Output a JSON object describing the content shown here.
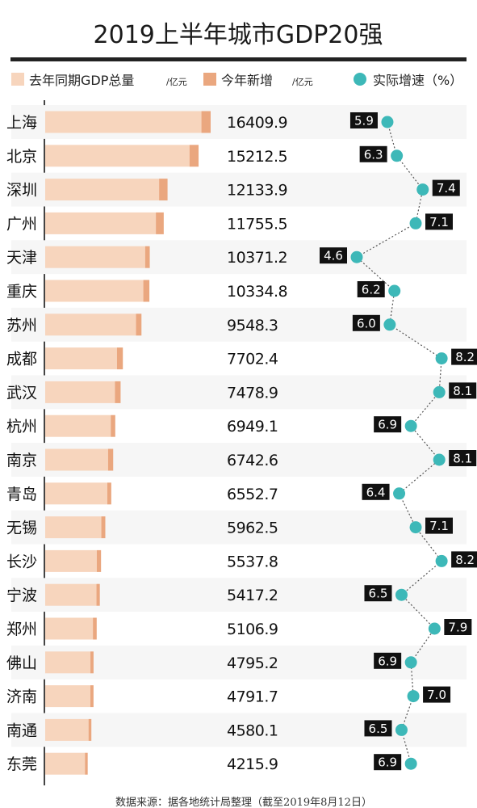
{
  "chart_data": {
    "type": "bar",
    "title": "2019上半年城市GDP20强",
    "legend": {
      "prev_label": "去年同期GDP总量",
      "prev_unit": "/亿元",
      "new_label": "今年新增",
      "new_unit": "/亿元",
      "rate_label": "实际增速（%）"
    },
    "colors": {
      "prev": "#f7d5bd",
      "new": "#eaa77f",
      "rate_dot": "#3db8b8",
      "rate_box": "#111111",
      "line": "#555555"
    },
    "categories": [
      "上海",
      "北京",
      "深圳",
      "广州",
      "天津",
      "重庆",
      "苏州",
      "成都",
      "武汉",
      "杭州",
      "南京",
      "青岛",
      "无锡",
      "长沙",
      "宁波",
      "郑州",
      "佛山",
      "济南",
      "南通",
      "东莞"
    ],
    "gdp_total": [
      16409.9,
      15212.5,
      12133.9,
      11755.5,
      10371.2,
      10334.8,
      9548.3,
      7702.4,
      7478.9,
      6949.1,
      6742.6,
      6552.7,
      5962.5,
      5537.8,
      5417.2,
      5106.9,
      4795.2,
      4791.7,
      4580.1,
      4215.9
    ],
    "gdp_total_labels": [
      "16409.9",
      "15212.5",
      "12133.9",
      "11755.5",
      "10371.2",
      "10334.8",
      "9548.3",
      "7702.4",
      "7478.9",
      "6949.1",
      "6742.6",
      "6552.7",
      "5962.5",
      "5537.8",
      "5417.2",
      "5106.9",
      "4795.2",
      "4791.7",
      "4580.1",
      "4215.9"
    ],
    "growth_rate": [
      5.9,
      6.3,
      7.4,
      7.1,
      4.6,
      6.2,
      6.0,
      8.2,
      8.1,
      6.9,
      8.1,
      6.4,
      7.1,
      8.2,
      6.5,
      7.9,
      6.9,
      7.0,
      6.5,
      6.9
    ],
    "growth_rate_labels": [
      "5.9",
      "6.3",
      "7.4",
      "7.1",
      "4.6",
      "6.2",
      "6.0",
      "8.2",
      "8.1",
      "6.9",
      "8.1",
      "6.4",
      "7.1",
      "8.2",
      "6.5",
      "7.9",
      "6.9",
      "7.0",
      "6.5",
      "6.9"
    ],
    "rate_label_side": [
      "left",
      "left",
      "right",
      "right",
      "left",
      "left",
      "left",
      "right",
      "right",
      "left",
      "right",
      "left",
      "right",
      "right",
      "left",
      "right",
      "left",
      "right",
      "left",
      "left"
    ]
  },
  "footer": "数据来源：据各地统计局整理（截至2019年8月12日）"
}
